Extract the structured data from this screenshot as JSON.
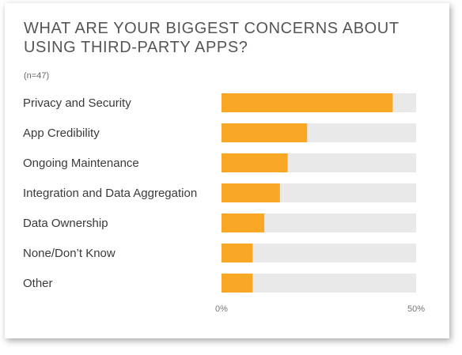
{
  "card": {
    "title": "WHAT ARE YOUR BIGGEST CONCERNS ABOUT USING THIRD-PARTY APPS?",
    "sample_size": "(n=47)"
  },
  "colors": {
    "bar": "#f9a825",
    "track": "#e9e9e9",
    "title": "#555555",
    "label": "#3a3a3a"
  },
  "chart_data": {
    "type": "bar",
    "orientation": "horizontal",
    "title": "WHAT ARE YOUR BIGGEST CONCERNS ABOUT USING THIRD-PARTY APPS?",
    "subtitle": "(n=47)",
    "categories": [
      "Privacy and Security",
      "App Credibility",
      "Ongoing Maintenance",
      "Integration and Data Aggregation",
      "Data Ownership",
      "None/Don’t Know",
      "Other"
    ],
    "values": [
      44,
      22,
      17,
      15,
      11,
      8,
      8
    ],
    "unit": "%",
    "xlim": [
      0,
      50
    ],
    "xticks": [
      {
        "value": 0,
        "label": "0%"
      },
      {
        "value": 50,
        "label": "50%"
      }
    ],
    "grid": false,
    "legend": "none"
  }
}
